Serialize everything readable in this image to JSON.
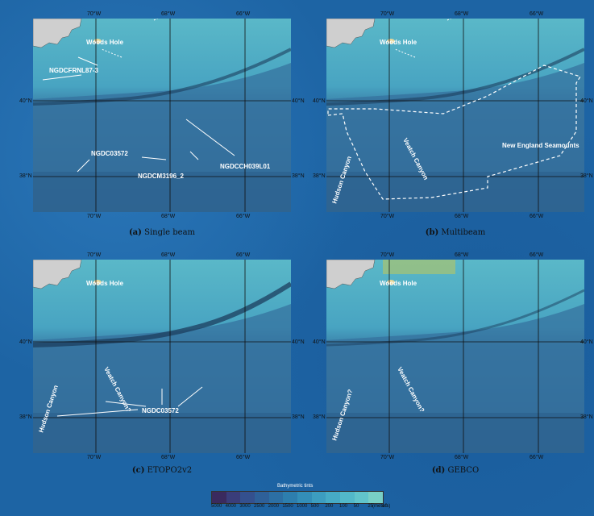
{
  "axes": {
    "lon_ticks": [
      "70°W",
      "68°W",
      "66°W"
    ],
    "lat_ticks": [
      "40°N",
      "38°N"
    ]
  },
  "panels": [
    {
      "caption_letter": "(a)",
      "caption_text": "Single beam",
      "place_label": "Woods Hole",
      "annotations": [
        "NGDCFRNL87-3",
        "NGDC03572",
        "NGDCCH039L01",
        "NGDCM3196_2"
      ]
    },
    {
      "caption_letter": "(b)",
      "caption_text": "Multibeam",
      "place_label": "Woods Hole",
      "annotations": [
        "Hudson Canyon",
        "Veatch Canyon",
        "New England Seamounts"
      ]
    },
    {
      "caption_letter": "(c)",
      "caption_text": "ETOPO2v2",
      "place_label": "Woods Hole",
      "annotations": [
        "Hudson Canyon",
        "Veatch Canyon?",
        "NGDC03572"
      ]
    },
    {
      "caption_letter": "(d)",
      "caption_text": "GEBCO",
      "place_label": "Woods Hole",
      "annotations": [
        "Hudson Canyon?",
        "Veatch Canyon?"
      ]
    }
  ],
  "legend": {
    "title": "Bathymetric tints",
    "ticks": [
      "5000",
      "4000",
      "3000",
      "2500",
      "2000",
      "1500",
      "1000",
      "500",
      "200",
      "100",
      "50",
      "25",
      "10",
      "(meters)"
    ],
    "colors": [
      "#3a2a5e",
      "#3a3d7a",
      "#34508e",
      "#2e6099",
      "#2c6fa4",
      "#2d7eae",
      "#338eb8",
      "#3c9dc0",
      "#46abc6",
      "#52b8c9",
      "#61c4cb",
      "#78cfc6"
    ]
  },
  "colors": {
    "land": "#cfcfcf",
    "shelf": "#58b6c6",
    "slope": "#3d86ab",
    "deep": "#2b5f8c"
  }
}
